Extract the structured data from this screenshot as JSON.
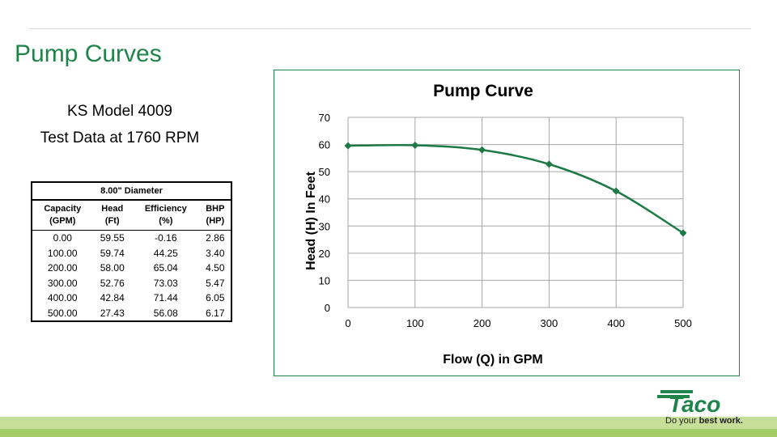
{
  "slide": {
    "title": "Pump Curves",
    "model_line": "KS Model 4009",
    "test_line": "Test Data at 1760 RPM"
  },
  "table": {
    "caption": "8.00\" Diameter",
    "headers": [
      [
        "Capacity",
        "(GPM)"
      ],
      [
        "Head",
        "(Ft)"
      ],
      [
        "Efficiency",
        "(%)"
      ],
      [
        "BHP",
        "(HP)"
      ]
    ],
    "rows": [
      [
        "0.00",
        "59.55",
        "-0.16",
        "2.86"
      ],
      [
        "100.00",
        "59.74",
        "44.25",
        "3.40"
      ],
      [
        "200.00",
        "58.00",
        "65.04",
        "4.50"
      ],
      [
        "300.00",
        "52.76",
        "73.03",
        "5.47"
      ],
      [
        "400.00",
        "42.84",
        "71.44",
        "6.05"
      ],
      [
        "500.00",
        "27.43",
        "56.08",
        "6.17"
      ]
    ]
  },
  "chart_data": {
    "type": "line",
    "title": "Pump Curve",
    "xlabel": "Flow (Q) in GPM",
    "ylabel": "Head (H) In Feet",
    "x": [
      0,
      100,
      200,
      300,
      400,
      500
    ],
    "series": [
      {
        "values": [
          59.55,
          59.74,
          58.0,
          52.76,
          42.84,
          27.43
        ],
        "color": "#1e7a45"
      }
    ],
    "xlim": [
      0,
      500
    ],
    "ylim": [
      0,
      70
    ],
    "xticks": [
      "0",
      "100",
      "200",
      "300",
      "400",
      "500"
    ],
    "yticks": [
      "0",
      "10",
      "20",
      "30",
      "40",
      "50",
      "60",
      "70"
    ],
    "grid": true,
    "marker": "diamond"
  },
  "logo": {
    "wordmark": "Taco",
    "tagline_prefix": "Do your ",
    "tagline_bold": "best work.",
    "color": "#1e8449"
  },
  "colors": {
    "accent": "#1e8449",
    "band_light": "#c5df99",
    "band_dark": "#a3cc66"
  }
}
